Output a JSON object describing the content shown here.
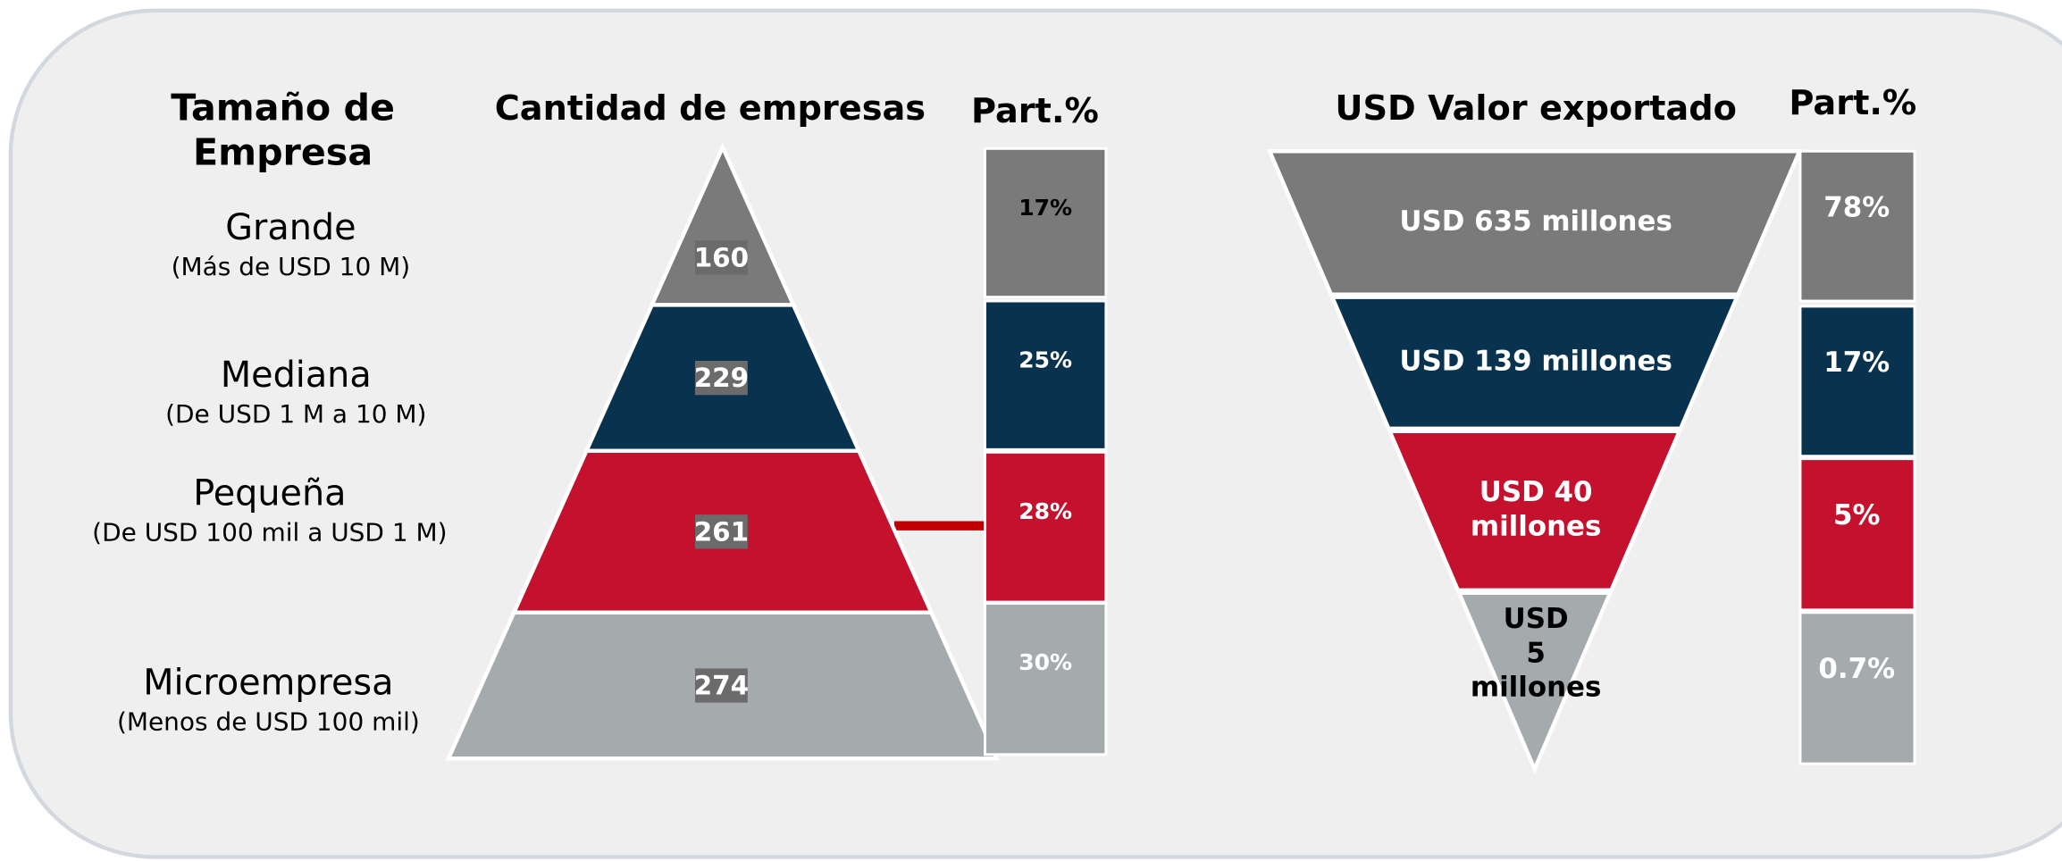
{
  "header": {
    "size": [
      "Tamaño de",
      "Empresa"
    ],
    "count": "Cantidad de empresas",
    "count_share": "Part.%",
    "export": "USD Valor exportado",
    "export_share": "Part.%"
  },
  "rows": [
    {
      "name": "Grande",
      "range": "(Más de USD 10 M)",
      "count": "160",
      "count_share": "17%",
      "export": [
        "USD 635 millones"
      ],
      "export_share": "78%"
    },
    {
      "name": "Mediana",
      "range": "(De USD 1 M a 10 M)",
      "count": "229",
      "count_share": "25%",
      "export": [
        "USD 139 millones"
      ],
      "export_share": "17%"
    },
    {
      "name": "Pequeña",
      "range": "(De USD  100 mil a USD 1 M)",
      "count": "261",
      "count_share": "28%",
      "export": [
        "USD 40",
        "millones"
      ],
      "export_share": "5%"
    },
    {
      "name": "Microempresa",
      "range": "(Menos de USD 100 mil)",
      "count": "274",
      "count_share": "30%",
      "export": [
        "USD",
        "5",
        "millones"
      ],
      "export_share": "0.7%"
    }
  ]
}
